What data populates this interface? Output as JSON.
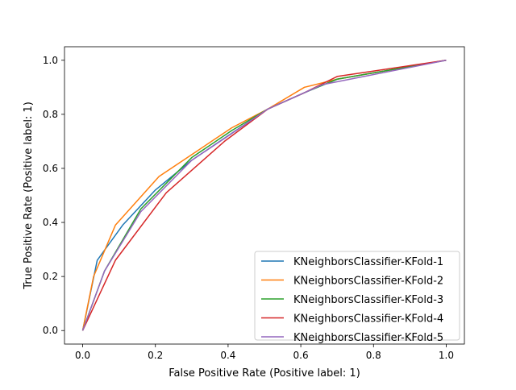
{
  "chart_data": {
    "type": "line",
    "title": "",
    "xlabel": "False Positive Rate (Positive label: 1)",
    "ylabel": "True Positive Rate (Positive label: 1)",
    "xlim": [
      -0.05,
      1.05
    ],
    "ylim": [
      -0.05,
      1.05
    ],
    "x_ticks": [
      0.0,
      0.2,
      0.4,
      0.6,
      0.8,
      1.0
    ],
    "y_ticks": [
      0.0,
      0.2,
      0.4,
      0.6,
      0.8,
      1.0
    ],
    "x_tick_labels": [
      "0.0",
      "0.2",
      "0.4",
      "0.6",
      "0.8",
      "1.0"
    ],
    "y_tick_labels": [
      "0.0",
      "0.2",
      "0.4",
      "0.6",
      "0.8",
      "1.0"
    ],
    "grid": false,
    "legend_position": "lower-right",
    "series": [
      {
        "name": "KNeighborsClassifier-KFold-1",
        "color": "#1f77b4",
        "x": [
          0.0,
          0.04,
          0.11,
          0.2,
          0.3,
          0.41,
          0.51,
          0.61,
          0.7,
          1.0
        ],
        "y": [
          0.0,
          0.26,
          0.39,
          0.52,
          0.63,
          0.73,
          0.82,
          0.88,
          0.93,
          1.0
        ]
      },
      {
        "name": "KNeighborsClassifier-KFold-2",
        "color": "#ff7f0e",
        "x": [
          0.0,
          0.03,
          0.09,
          0.21,
          0.31,
          0.41,
          0.51,
          0.61,
          0.7,
          1.0
        ],
        "y": [
          0.0,
          0.2,
          0.39,
          0.57,
          0.66,
          0.75,
          0.82,
          0.9,
          0.93,
          1.0
        ]
      },
      {
        "name": "KNeighborsClassifier-KFold-3",
        "color": "#2ca02c",
        "x": [
          0.0,
          0.06,
          0.16,
          0.3,
          0.41,
          0.51,
          0.61,
          0.7,
          1.0
        ],
        "y": [
          0.0,
          0.22,
          0.45,
          0.64,
          0.74,
          0.82,
          0.88,
          0.93,
          1.0
        ]
      },
      {
        "name": "KNeighborsClassifier-KFold-4",
        "color": "#d62728",
        "x": [
          0.0,
          0.09,
          0.23,
          0.39,
          0.51,
          0.61,
          0.7,
          1.0
        ],
        "y": [
          0.0,
          0.26,
          0.51,
          0.7,
          0.82,
          0.88,
          0.94,
          1.0
        ]
      },
      {
        "name": "KNeighborsClassifier-KFold-5",
        "color": "#9467bd",
        "x": [
          0.0,
          0.06,
          0.16,
          0.3,
          0.4,
          0.51,
          0.66,
          1.0
        ],
        "y": [
          0.0,
          0.22,
          0.44,
          0.63,
          0.72,
          0.82,
          0.91,
          1.0
        ]
      }
    ]
  }
}
